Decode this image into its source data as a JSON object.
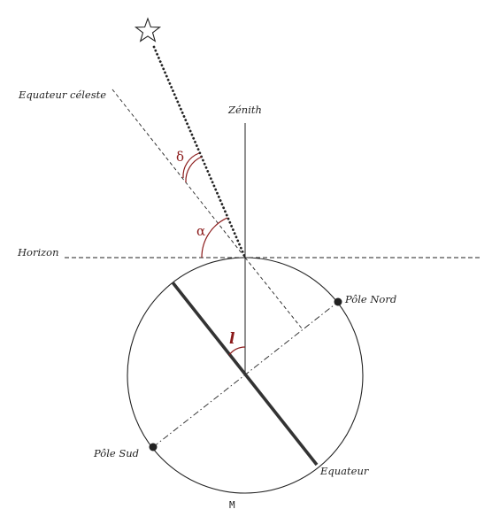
{
  "labels": {
    "celestial_equator": "Equateur céleste",
    "zenith": "Zénith",
    "horizon": "Horizon",
    "north_pole": "Pôle Nord",
    "south_pole": "Pôle Sud",
    "equator": "Equateur",
    "point_m": "M",
    "angle_delta": "δ",
    "angle_alpha": "α",
    "angle_l": "l"
  },
  "colors": {
    "ink": "#222222",
    "angle_accent": "#8b1a1a"
  },
  "icons": {
    "star": "star-icon"
  }
}
